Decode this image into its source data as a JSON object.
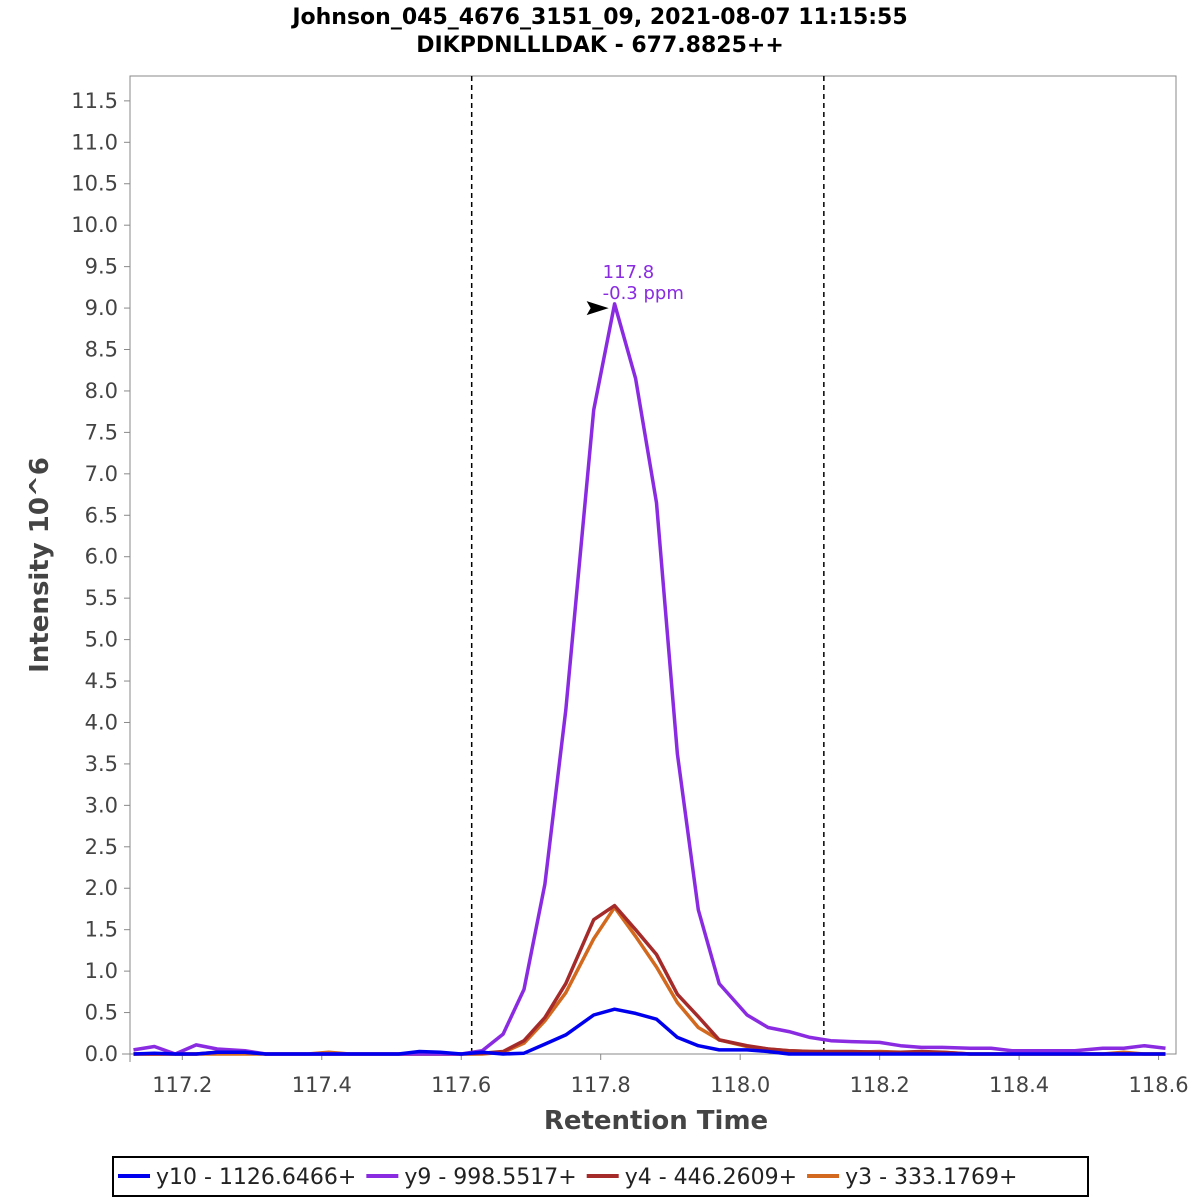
{
  "chart_data": {
    "type": "line",
    "title": "Johnson_045_4676_3151_09, 2021-08-07 11:15:55",
    "subtitle": "DIKPDNLLLDAK - 677.8825++",
    "xlabel": "Retention Time",
    "ylabel": "Intensity 10^6",
    "xlim": [
      117.125,
      118.625
    ],
    "ylim": [
      0,
      11.8
    ],
    "xticks": [
      117.2,
      117.4,
      117.6,
      117.8,
      118.0,
      118.2,
      118.4,
      118.6
    ],
    "xtick_labels": [
      "117.2",
      "117.4",
      "117.6",
      "117.8",
      "118.0",
      "118.2",
      "118.4",
      "118.6"
    ],
    "yticks": [
      0.0,
      0.5,
      1.0,
      1.5,
      2.0,
      2.5,
      3.0,
      3.5,
      4.0,
      4.5,
      5.0,
      5.5,
      6.0,
      6.5,
      7.0,
      7.5,
      8.0,
      8.5,
      9.0,
      9.5,
      10.0,
      10.5,
      11.0,
      11.5
    ],
    "ytick_labels": [
      "0.0",
      "0.5",
      "1.0",
      "1.5",
      "2.0",
      "2.5",
      "3.0",
      "3.5",
      "4.0",
      "4.5",
      "5.0",
      "5.5",
      "6.0",
      "6.5",
      "7.0",
      "7.5",
      "8.0",
      "8.5",
      "9.0",
      "9.5",
      "10.0",
      "10.5",
      "11.0",
      "11.5"
    ],
    "boundaries": [
      117.615,
      118.12
    ],
    "grid": false,
    "legend_position": "bottom",
    "annotation": {
      "x": 117.82,
      "y": 9.0,
      "line1": "117.8",
      "line2": "-0.3 ppm",
      "color": "#8a2be2"
    },
    "x": [
      117.13,
      117.16,
      117.19,
      117.22,
      117.25,
      117.29,
      117.32,
      117.35,
      117.38,
      117.41,
      117.44,
      117.48,
      117.51,
      117.54,
      117.57,
      117.6,
      117.63,
      117.66,
      117.69,
      117.72,
      117.75,
      117.79,
      117.82,
      117.85,
      117.88,
      117.91,
      117.94,
      117.97,
      118.01,
      118.04,
      118.07,
      118.1,
      118.13,
      118.16,
      118.2,
      118.23,
      118.26,
      118.29,
      118.33,
      118.36,
      118.39,
      118.42,
      118.45,
      118.48,
      118.52,
      118.55,
      118.58,
      118.61
    ],
    "series": [
      {
        "name": "y10 - 1126.6466+",
        "color": "#0000ee",
        "values": [
          0.0,
          0.01,
          0.0,
          0.0,
          0.02,
          0.02,
          0.0,
          0.0,
          0.0,
          0.0,
          0.0,
          0.0,
          0.0,
          0.03,
          0.02,
          0.0,
          0.02,
          0.0,
          0.01,
          0.12,
          0.23,
          0.47,
          0.54,
          0.49,
          0.42,
          0.2,
          0.1,
          0.05,
          0.05,
          0.03,
          0.0,
          0.0,
          0.0,
          0.0,
          0.0,
          0.0,
          0.0,
          0.0,
          0.0,
          0.0,
          0.0,
          0.0,
          0.0,
          0.0,
          0.0,
          0.0,
          0.0,
          0.0
        ]
      },
      {
        "name": "y9 - 998.5517+",
        "color": "#8a2be2",
        "values": [
          0.05,
          0.09,
          0.0,
          0.11,
          0.06,
          0.04,
          0.0,
          0.0,
          0.0,
          0.0,
          0.0,
          0.0,
          0.0,
          0.0,
          0.0,
          0.0,
          0.04,
          0.24,
          0.78,
          2.05,
          4.15,
          7.77,
          9.05,
          8.15,
          6.65,
          3.62,
          1.74,
          0.85,
          0.47,
          0.32,
          0.27,
          0.2,
          0.16,
          0.15,
          0.14,
          0.1,
          0.08,
          0.08,
          0.07,
          0.07,
          0.04,
          0.04,
          0.04,
          0.04,
          0.07,
          0.07,
          0.1,
          0.07
        ]
      },
      {
        "name": "y4 - 446.2609+",
        "color": "#a52a2a",
        "values": [
          0.0,
          0.0,
          0.0,
          0.0,
          0.02,
          0.02,
          0.0,
          0.0,
          0.0,
          0.0,
          0.0,
          0.0,
          0.0,
          0.0,
          0.0,
          0.0,
          0.01,
          0.03,
          0.16,
          0.44,
          0.85,
          1.62,
          1.79,
          1.5,
          1.2,
          0.72,
          0.45,
          0.17,
          0.1,
          0.06,
          0.04,
          0.03,
          0.03,
          0.03,
          0.02,
          0.02,
          0.03,
          0.02,
          0.0,
          0.0,
          0.0,
          0.0,
          0.0,
          0.0,
          0.0,
          0.0,
          0.0,
          0.0
        ]
      },
      {
        "name": "y3 - 333.1769+",
        "color": "#d2691e",
        "values": [
          0.0,
          0.0,
          0.0,
          0.0,
          0.0,
          0.0,
          0.0,
          0.0,
          0.0,
          0.02,
          0.0,
          0.0,
          0.0,
          0.0,
          0.0,
          0.0,
          0.0,
          0.02,
          0.13,
          0.4,
          0.74,
          1.39,
          1.77,
          1.42,
          1.05,
          0.62,
          0.32,
          0.17,
          0.09,
          0.06,
          0.04,
          0.03,
          0.02,
          0.02,
          0.03,
          0.02,
          0.02,
          0.02,
          0.0,
          0.0,
          0.0,
          0.0,
          0.0,
          0.0,
          0.0,
          0.02,
          0.0,
          0.0
        ]
      }
    ]
  }
}
